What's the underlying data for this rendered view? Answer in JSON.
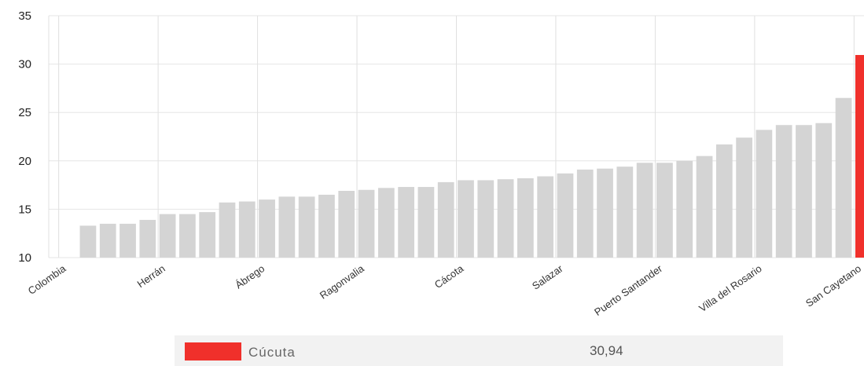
{
  "chart_data": {
    "type": "bar",
    "y_ticks": [
      "35",
      "30",
      "25",
      "20",
      "15",
      "10"
    ],
    "ylim": [
      10,
      35
    ],
    "grid": true,
    "highlight_color": "#f0302b",
    "bar_color": "#d4d4d4",
    "x_tick_labels": [
      "Colombia",
      "Herrán",
      "Ábrego",
      "Ragonvalia",
      "Cácota",
      "Salazar",
      "Puerto Santander",
      "Villa del Rosario",
      "San Cayetano"
    ],
    "values": [
      10,
      13.3,
      13.5,
      13.5,
      13.9,
      14.5,
      14.5,
      14.7,
      15.7,
      15.8,
      16.0,
      16.3,
      16.3,
      16.5,
      16.9,
      17.0,
      17.2,
      17.3,
      17.3,
      17.8,
      18.0,
      18.0,
      18.1,
      18.2,
      18.4,
      18.7,
      19.1,
      19.2,
      19.4,
      19.8,
      19.8,
      20.0,
      20.5,
      21.7,
      22.4,
      23.2,
      23.7,
      23.7,
      23.9,
      26.5,
      30.94
    ],
    "highlight_index": 40,
    "legend": {
      "name": "Cúcuta",
      "value": "30,94"
    }
  }
}
